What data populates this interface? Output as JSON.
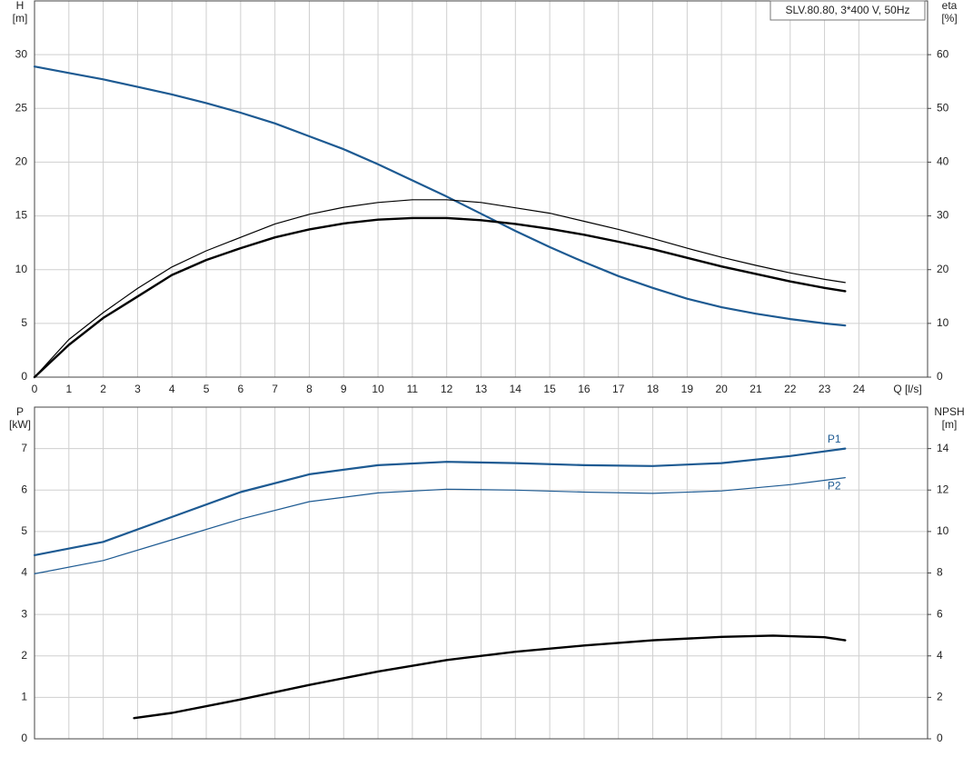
{
  "chart_data": [
    {
      "type": "line",
      "title": "SLV.80.80, 3*400 V, 50Hz",
      "ylabel": "H",
      "yunit": "[m]",
      "y2label": "eta",
      "y2unit": "[%]",
      "xlabel": "Q [l/s]",
      "xlim": [
        0,
        26
      ],
      "xticks": [
        0,
        1,
        2,
        3,
        4,
        5,
        6,
        7,
        8,
        9,
        10,
        11,
        12,
        13,
        14,
        15,
        16,
        17,
        18,
        19,
        20,
        21,
        22,
        23,
        24
      ],
      "xtick_labels": true,
      "ylim": [
        0,
        35
      ],
      "yticks": [
        0,
        5,
        10,
        15,
        20,
        25,
        30
      ],
      "y2lim": [
        0,
        70
      ],
      "y2ticks": [
        0,
        10,
        20,
        30,
        40,
        50,
        60
      ],
      "grid": true,
      "series": [
        {
          "color": "#1d5a92",
          "width": 2.2,
          "axis": "y",
          "x": [
            0,
            1,
            2,
            3,
            4,
            5,
            6,
            7,
            8,
            9,
            10,
            11,
            12,
            13,
            14,
            15,
            16,
            17,
            18,
            19,
            20,
            21,
            22,
            23,
            23.6
          ],
          "values": [
            28.9,
            28.3,
            27.7,
            27.0,
            26.3,
            25.5,
            24.6,
            23.6,
            22.4,
            21.2,
            19.8,
            18.3,
            16.8,
            15.2,
            13.6,
            12.1,
            10.7,
            9.4,
            8.3,
            7.3,
            6.5,
            5.9,
            5.4,
            5.0,
            4.8
          ]
        },
        {
          "color": "#000000",
          "width": 1.2,
          "axis": "y2",
          "x": [
            0,
            1,
            2,
            3,
            4,
            5,
            6,
            7,
            8,
            9,
            10,
            11,
            12,
            13,
            14,
            15,
            16,
            17,
            18,
            19,
            20,
            21,
            22,
            23,
            23.6
          ],
          "values": [
            0,
            7,
            12,
            16.5,
            20.5,
            23.5,
            26,
            28.5,
            30.3,
            31.6,
            32.5,
            33,
            33,
            32.5,
            31.5,
            30.5,
            29,
            27.5,
            25.8,
            24,
            22.3,
            20.8,
            19.4,
            18.2,
            17.6
          ]
        },
        {
          "color": "#000000",
          "width": 2.4,
          "axis": "y2",
          "x": [
            0,
            1,
            2,
            3,
            4,
            5,
            6,
            7,
            8,
            9,
            10,
            11,
            12,
            13,
            14,
            15,
            16,
            17,
            18,
            19,
            20,
            21,
            22,
            23,
            23.6
          ],
          "values": [
            0,
            6,
            11,
            15,
            19,
            21.8,
            24,
            26,
            27.5,
            28.6,
            29.3,
            29.6,
            29.6,
            29.2,
            28.5,
            27.6,
            26.5,
            25.2,
            23.8,
            22.2,
            20.6,
            19.2,
            17.8,
            16.6,
            16
          ]
        }
      ]
    },
    {
      "type": "line",
      "ylabel": "P",
      "yunit": "[kW]",
      "y2label": "NPSH",
      "y2unit": "[m]",
      "xlim": [
        0,
        26
      ],
      "xticks": [
        0,
        1,
        2,
        3,
        4,
        5,
        6,
        7,
        8,
        9,
        10,
        11,
        12,
        13,
        14,
        15,
        16,
        17,
        18,
        19,
        20,
        21,
        22,
        23,
        24
      ],
      "xtick_labels": false,
      "ylim": [
        0,
        8
      ],
      "yticks": [
        0,
        1,
        2,
        3,
        4,
        5,
        6,
        7
      ],
      "y2lim": [
        0,
        16
      ],
      "y2ticks": [
        0,
        2,
        4,
        6,
        8,
        10,
        12,
        14
      ],
      "grid": true,
      "series": [
        {
          "name": "P1",
          "color": "#1d5a92",
          "width": 2.2,
          "axis": "y",
          "label_side": "above",
          "x": [
            0,
            2,
            4,
            6,
            8,
            10,
            12,
            14,
            16,
            18,
            20,
            22,
            23.6
          ],
          "values": [
            4.43,
            4.75,
            5.35,
            5.95,
            6.38,
            6.6,
            6.68,
            6.65,
            6.6,
            6.58,
            6.65,
            6.82,
            7.0
          ]
        },
        {
          "name": "P2",
          "color": "#1d5a92",
          "width": 1.2,
          "axis": "y",
          "label_side": "below",
          "x": [
            0,
            2,
            4,
            6,
            8,
            10,
            12,
            14,
            16,
            18,
            20,
            22,
            23.6
          ],
          "values": [
            3.98,
            4.3,
            4.8,
            5.3,
            5.72,
            5.93,
            6.02,
            6.0,
            5.95,
            5.92,
            5.98,
            6.13,
            6.3
          ]
        },
        {
          "color": "#000000",
          "width": 2.4,
          "axis": "y2",
          "x": [
            2.9,
            4,
            6,
            8,
            10,
            12,
            14,
            16,
            18,
            20,
            21.5,
            23,
            23.6
          ],
          "values": [
            1.0,
            1.25,
            1.9,
            2.6,
            3.25,
            3.8,
            4.2,
            4.5,
            4.75,
            4.92,
            4.98,
            4.9,
            4.75
          ]
        }
      ]
    }
  ]
}
